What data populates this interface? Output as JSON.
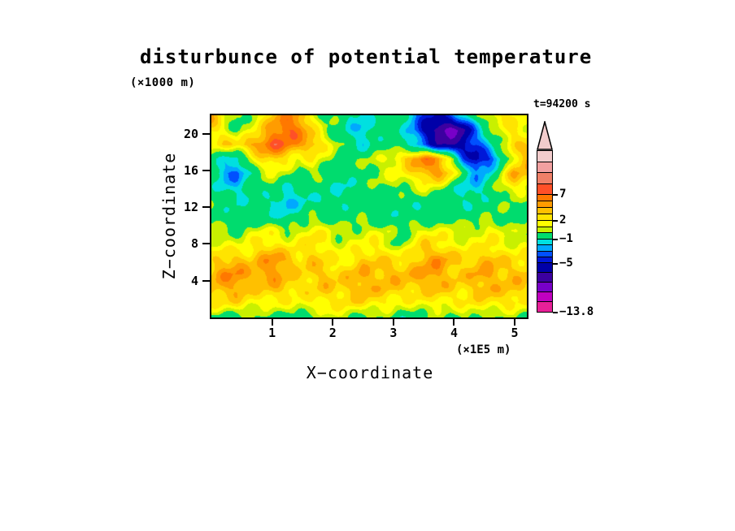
{
  "figure": {
    "title": "disturbunce of potential temperature",
    "y_units_label": "(×1000 m)",
    "x_units_label": "(×1E5 m)",
    "time_label": "t=94200 s",
    "xlabel": "X−coordinate",
    "ylabel": "Z−coordinate"
  },
  "chart_data": {
    "type": "heatmap",
    "title": "disturbunce of potential temperature",
    "xlabel": "X−coordinate (×1E5 m)",
    "ylabel": "Z−coordinate (×1000 m)",
    "time": "t=94200 s",
    "x_range": [
      0,
      5.2
    ],
    "z_range": [
      0,
      22
    ],
    "x_ticks": [
      1,
      2,
      3,
      4,
      5
    ],
    "z_ticks": [
      4,
      8,
      12,
      16,
      20
    ],
    "value_min": -13.8,
    "colorbar_tick_labels": [
      "7",
      "2",
      "−1",
      "−5",
      "−13.8"
    ],
    "grid": {
      "cols": 26,
      "rows": 15,
      "order": "top-to-bottom (z=22 first), left-to-right (x=0 first)",
      "values": [
        [
          5,
          2,
          1,
          2,
          3,
          5,
          6,
          5,
          2,
          0,
          0,
          -1.5,
          -1.5,
          0,
          0,
          0,
          -2,
          -4,
          -5,
          -4,
          -2,
          0,
          2,
          3,
          3,
          2
        ],
        [
          4,
          3,
          1,
          2,
          4,
          6,
          7,
          6,
          3,
          1,
          0,
          -1,
          -2,
          -0.5,
          0.5,
          0,
          -2.5,
          -6,
          -9,
          -10.5,
          -8,
          -3,
          0,
          2,
          4,
          3
        ],
        [
          3,
          4,
          4,
          5,
          6,
          7,
          6,
          5,
          5,
          3,
          1.5,
          0,
          -1,
          0,
          0.5,
          -0.5,
          -2,
          -4,
          -7,
          -8,
          -6,
          -4,
          -1,
          2,
          4,
          4
        ],
        [
          0,
          -1,
          -2,
          1,
          3,
          4,
          3,
          2,
          3,
          2,
          1,
          0.5,
          1,
          1.5,
          2,
          3,
          5,
          6,
          5,
          2,
          -3,
          -5.5,
          -4,
          -1,
          3,
          5
        ],
        [
          -1,
          -3,
          -4,
          -1,
          1,
          2,
          1,
          0.5,
          2,
          1,
          0,
          0,
          0.5,
          1,
          1.5,
          2,
          3,
          5,
          6,
          4,
          0,
          -2,
          -1.5,
          2,
          5,
          4
        ],
        [
          -0.5,
          -2,
          -2,
          -1,
          0,
          0.5,
          -0.5,
          -1,
          0,
          0,
          -1,
          -1.5,
          -0.5,
          0,
          0.5,
          1,
          1.5,
          2.5,
          2,
          0.5,
          -1,
          -2,
          -0.5,
          1.5,
          2.5,
          2
        ],
        [
          0,
          -0.5,
          -1,
          0,
          0,
          -1,
          -2,
          -1,
          -0.5,
          -1,
          -1.5,
          -1,
          -0.5,
          0,
          -0.5,
          0,
          0,
          0.5,
          0,
          -0.5,
          -1,
          -1,
          -0.5,
          0,
          0.5,
          0
        ],
        [
          0.5,
          0,
          0,
          0.5,
          0,
          -0.5,
          -1,
          -0.5,
          0.5,
          0,
          -0.5,
          0,
          0.5,
          0,
          -0.5,
          0.5,
          0,
          -0.5,
          0,
          0.5,
          0,
          -0.5,
          0.5,
          0.5,
          0,
          0.5
        ],
        [
          2,
          1.5,
          1,
          2,
          2.5,
          2,
          1,
          1.5,
          2.5,
          2,
          1,
          1.5,
          2,
          2.5,
          2,
          0.5,
          2,
          2.5,
          2,
          1.5,
          1,
          1.5,
          2.5,
          2,
          1.5,
          2
        ],
        [
          2.5,
          3,
          2,
          2.5,
          3.5,
          3,
          2,
          2.5,
          3.5,
          3,
          2,
          2.5,
          3,
          3.5,
          2.5,
          0.5,
          2.5,
          3.5,
          3,
          2.5,
          2,
          2.5,
          3.5,
          3,
          2.5,
          2.5
        ],
        [
          3.5,
          4.5,
          4.5,
          3.5,
          4.5,
          5.5,
          4.5,
          3.5,
          4.5,
          4,
          3,
          3.5,
          4.5,
          4,
          3.5,
          3,
          3.5,
          4.5,
          5.5,
          4.5,
          4,
          4.5,
          5.5,
          4.5,
          3.5,
          3.5
        ],
        [
          4.5,
          5.5,
          5.5,
          4.5,
          5,
          5.5,
          4.5,
          4,
          4.5,
          5,
          4,
          4.5,
          5,
          4,
          4.5,
          4,
          4.5,
          5.5,
          5.5,
          4.5,
          4.5,
          5.5,
          5.5,
          4.5,
          4.5,
          4
        ],
        [
          4,
          4.5,
          5,
          4,
          4,
          5,
          4.5,
          4,
          4,
          4.5,
          4,
          4,
          4.5,
          4,
          4,
          4,
          4,
          4.5,
          5,
          4.5,
          4,
          4.5,
          5,
          4,
          4,
          3.5
        ],
        [
          3,
          3,
          3.5,
          3,
          3,
          3.5,
          3,
          2.5,
          3,
          3,
          2.5,
          3,
          3.5,
          3,
          3,
          2.5,
          3,
          3,
          3.5,
          3,
          3,
          3,
          3,
          3,
          3,
          2.5
        ],
        [
          0.5,
          0,
          1,
          1.5,
          1,
          0,
          0.5,
          1,
          0,
          1,
          1.5,
          1,
          0,
          1,
          1,
          0,
          0.5,
          1.5,
          1,
          0,
          1,
          1,
          0,
          0.5,
          1,
          0.5
        ]
      ]
    },
    "levels": [
      {
        "t": 10,
        "c": "#f2cccc"
      },
      {
        "t": 9,
        "c": "#f2a0a0"
      },
      {
        "t": 8,
        "c": "#f08068"
      },
      {
        "t": 7,
        "c": "#ff5028"
      },
      {
        "t": 6,
        "c": "#ff7800"
      },
      {
        "t": 5,
        "c": "#ff9c00"
      },
      {
        "t": 4,
        "c": "#ffc000"
      },
      {
        "t": 3,
        "c": "#ffe400"
      },
      {
        "t": 2,
        "c": "#ffff00"
      },
      {
        "t": 1,
        "c": "#c8f000"
      },
      {
        "t": -1,
        "c": "#00dc6e"
      },
      {
        "t": -2,
        "c": "#00e0e0"
      },
      {
        "t": -3,
        "c": "#00a8ff"
      },
      {
        "t": -4,
        "c": "#0050ff"
      },
      {
        "t": -5,
        "c": "#0018d8"
      },
      {
        "t": -7,
        "c": "#0000a8"
      },
      {
        "t": -9,
        "c": "#3c00a0"
      },
      {
        "t": -11,
        "c": "#7800c8"
      },
      {
        "t": -12.4,
        "c": "#c000c0"
      },
      {
        "t": -99,
        "c": "#e82098"
      }
    ],
    "colorbar": {
      "arrow_color": "#f2cccc",
      "segments": [
        {
          "h": 6.9,
          "c": "#f2cccc"
        },
        {
          "h": 6.9,
          "c": "#f2a0a0"
        },
        {
          "h": 6.9,
          "c": "#f08068"
        },
        {
          "h": 6.8,
          "c": "#ff5028"
        },
        {
          "h": 4,
          "c": "#ff7800"
        },
        {
          "h": 4,
          "c": "#ff9c00"
        },
        {
          "h": 4,
          "c": "#ffc000"
        },
        {
          "h": 4,
          "c": "#ffe400"
        },
        {
          "h": 3.8,
          "c": "#ffff00"
        },
        {
          "h": 3.8,
          "c": "#c8f000"
        },
        {
          "h": 3.9,
          "c": "#00dc6e"
        },
        {
          "h": 3.75,
          "c": "#00e0e0"
        },
        {
          "h": 3.75,
          "c": "#00a8ff"
        },
        {
          "h": 3.75,
          "c": "#0050ff"
        },
        {
          "h": 3.75,
          "c": "#0018d8"
        },
        {
          "h": 6,
          "c": "#0000a8"
        },
        {
          "h": 6,
          "c": "#3c00a0"
        },
        {
          "h": 6,
          "c": "#7800c8"
        },
        {
          "h": 6,
          "c": "#c000c0"
        },
        {
          "h": 6,
          "c": "#e82098"
        }
      ],
      "labels": [
        {
          "text": "7",
          "pos": 27.5
        },
        {
          "text": "2",
          "pos": 43.5
        },
        {
          "text": "−1",
          "pos": 55
        },
        {
          "text": "−5",
          "pos": 70
        },
        {
          "text": "−13.8",
          "pos": 100
        }
      ]
    }
  }
}
